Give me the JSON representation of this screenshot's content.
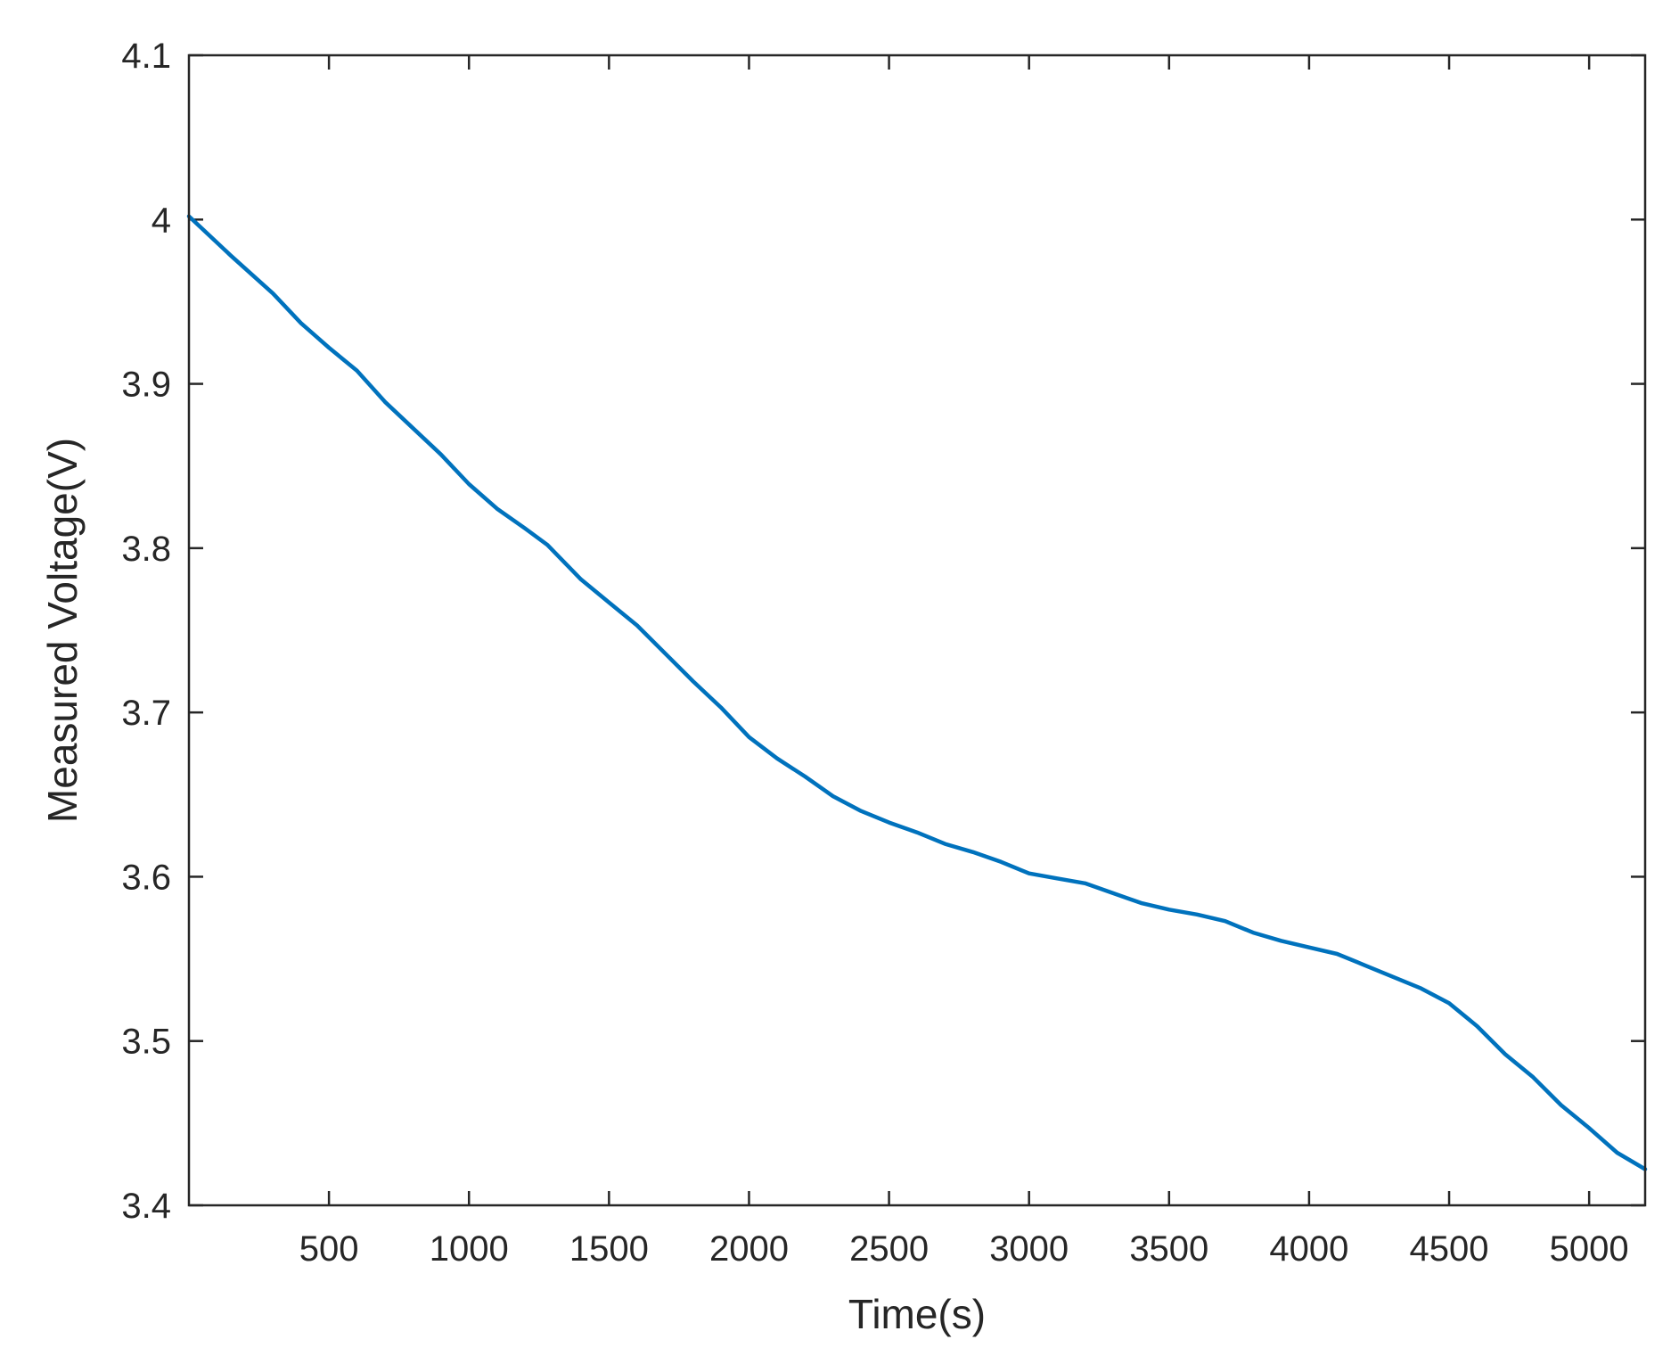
{
  "chart_data": {
    "type": "line",
    "title": "",
    "xlabel": "Time(s)",
    "ylabel": "Measured Voltage(V)",
    "xlim": [
      0,
      5200
    ],
    "ylim": [
      3.4,
      4.1
    ],
    "xticks": [
      500,
      1000,
      1500,
      2000,
      2500,
      3000,
      3500,
      4000,
      4500,
      5000
    ],
    "xtick_labels": [
      "500",
      "1000",
      "1500",
      "2000",
      "2500",
      "3000",
      "3500",
      "4000",
      "4500",
      "5000"
    ],
    "yticks": [
      3.4,
      3.5,
      3.6,
      3.7,
      3.8,
      3.9,
      4.0,
      4.1
    ],
    "ytick_labels": [
      "3.4",
      "3.5",
      "3.6",
      "3.7",
      "3.8",
      "3.9",
      "4",
      "4.1"
    ],
    "grid": false,
    "box": true,
    "series": [
      {
        "color": "#0072BD",
        "x": [
          0,
          150,
          300,
          400,
          500,
          600,
          700,
          800,
          900,
          1000,
          1100,
          1200,
          1280,
          1400,
          1500,
          1600,
          1700,
          1800,
          1900,
          2000,
          2100,
          2200,
          2300,
          2400,
          2500,
          2600,
          2700,
          2800,
          2900,
          3000,
          3100,
          3200,
          3300,
          3400,
          3500,
          3600,
          3700,
          3800,
          3900,
          4000,
          4100,
          4200,
          4300,
          4400,
          4500,
          4600,
          4700,
          4800,
          4900,
          5000,
          5100,
          5200
        ],
        "y": [
          4.002,
          3.978,
          3.955,
          3.937,
          3.922,
          3.908,
          3.889,
          3.873,
          3.857,
          3.839,
          3.824,
          3.812,
          3.802,
          3.781,
          3.767,
          3.753,
          3.736,
          3.719,
          3.703,
          3.685,
          3.672,
          3.661,
          3.649,
          3.64,
          3.633,
          3.627,
          3.62,
          3.615,
          3.609,
          3.602,
          3.599,
          3.596,
          3.59,
          3.584,
          3.58,
          3.577,
          3.573,
          3.566,
          3.561,
          3.557,
          3.553,
          3.546,
          3.539,
          3.532,
          3.523,
          3.509,
          3.492,
          3.478,
          3.461,
          3.447,
          3.432,
          3.422
        ]
      }
    ]
  }
}
